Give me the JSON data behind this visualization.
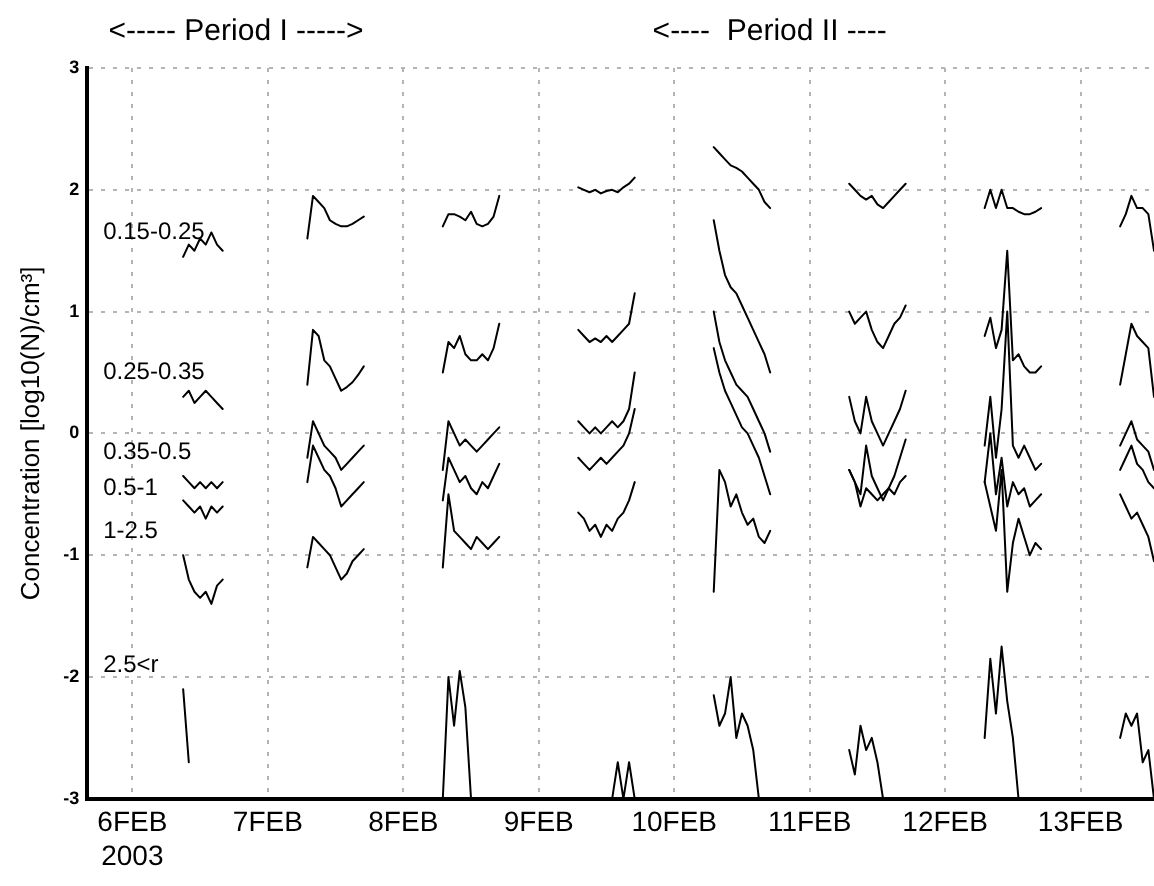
{
  "chart_data": {
    "type": "line",
    "ylabel": "Concentration [log10(N)/cm³]",
    "annotations": [
      "<----- Period I ----->",
      "<----  Period II ----"
    ],
    "xlim": [
      "2003-02-05T16:00",
      "2003-02-13T13:00"
    ],
    "xticks": [
      {
        "value": "2003-02-06",
        "label": "6FEB\n2003"
      },
      {
        "value": "2003-02-07",
        "label": "7FEB"
      },
      {
        "value": "2003-02-08",
        "label": "8FEB"
      },
      {
        "value": "2003-02-09",
        "label": "9FEB"
      },
      {
        "value": "2003-02-10",
        "label": "10FEB"
      },
      {
        "value": "2003-02-11",
        "label": "11FEB"
      },
      {
        "value": "2003-02-12",
        "label": "12FEB"
      },
      {
        "value": "2003-02-13",
        "label": "13FEB"
      }
    ],
    "ylim": [
      -3,
      3
    ],
    "yticks": [
      -3,
      -2,
      -1,
      0,
      1,
      2,
      3
    ],
    "grid": true,
    "legend": false,
    "marker": "none",
    "line_style": "solid",
    "x": [
      "2003-02-06T09:00",
      "2003-02-06T10:00",
      "2003-02-06T11:00",
      "2003-02-06T12:00",
      "2003-02-06T13:00",
      "2003-02-06T14:00",
      "2003-02-06T15:00",
      "2003-02-06T16:00",
      "2003-02-07T00:00",
      "2003-02-07T07:00",
      "2003-02-07T08:00",
      "2003-02-07T09:00",
      "2003-02-07T10:00",
      "2003-02-07T11:00",
      "2003-02-07T12:00",
      "2003-02-07T13:00",
      "2003-02-07T14:00",
      "2003-02-07T15:00",
      "2003-02-07T16:00",
      "2003-02-07T17:00",
      "2003-02-08T00:00",
      "2003-02-08T07:00",
      "2003-02-08T08:00",
      "2003-02-08T09:00",
      "2003-02-08T10:00",
      "2003-02-08T11:00",
      "2003-02-08T12:00",
      "2003-02-08T13:00",
      "2003-02-08T14:00",
      "2003-02-08T15:00",
      "2003-02-08T16:00",
      "2003-02-08T17:00",
      "2003-02-09T00:00",
      "2003-02-09T07:00",
      "2003-02-09T08:00",
      "2003-02-09T09:00",
      "2003-02-09T10:00",
      "2003-02-09T11:00",
      "2003-02-09T12:00",
      "2003-02-09T13:00",
      "2003-02-09T14:00",
      "2003-02-09T15:00",
      "2003-02-09T16:00",
      "2003-02-09T17:00",
      "2003-02-10T00:00",
      "2003-02-10T07:00",
      "2003-02-10T08:00",
      "2003-02-10T09:00",
      "2003-02-10T10:00",
      "2003-02-10T11:00",
      "2003-02-10T12:00",
      "2003-02-10T13:00",
      "2003-02-10T14:00",
      "2003-02-10T15:00",
      "2003-02-10T16:00",
      "2003-02-10T17:00",
      "2003-02-11T00:00",
      "2003-02-11T07:00",
      "2003-02-11T08:00",
      "2003-02-11T09:00",
      "2003-02-11T10:00",
      "2003-02-11T11:00",
      "2003-02-11T12:00",
      "2003-02-11T13:00",
      "2003-02-11T14:00",
      "2003-02-11T15:00",
      "2003-02-11T16:00",
      "2003-02-11T17:00",
      "2003-02-12T00:00",
      "2003-02-12T07:00",
      "2003-02-12T08:00",
      "2003-02-12T09:00",
      "2003-02-12T10:00",
      "2003-02-12T11:00",
      "2003-02-12T12:00",
      "2003-02-12T13:00",
      "2003-02-12T14:00",
      "2003-02-12T15:00",
      "2003-02-12T16:00",
      "2003-02-12T17:00",
      "2003-02-13T00:00",
      "2003-02-13T07:00",
      "2003-02-13T08:00",
      "2003-02-13T09:00",
      "2003-02-13T10:00",
      "2003-02-13T11:00",
      "2003-02-13T12:00",
      "2003-02-13T13:00"
    ],
    "series": [
      {
        "name": "0.15-0.25",
        "color": "#000000",
        "values": [
          1.45,
          1.55,
          1.5,
          1.6,
          1.55,
          1.65,
          1.55,
          1.5,
          null,
          1.6,
          1.95,
          1.9,
          1.85,
          1.75,
          1.72,
          1.7,
          1.7,
          1.72,
          1.75,
          1.78,
          null,
          1.7,
          1.8,
          1.8,
          1.78,
          1.75,
          1.82,
          1.72,
          1.7,
          1.72,
          1.78,
          1.95,
          null,
          2.02,
          2.0,
          1.98,
          2.0,
          1.97,
          1.99,
          2.0,
          1.98,
          2.02,
          2.05,
          2.1,
          null,
          2.35,
          2.3,
          2.25,
          2.2,
          2.18,
          2.15,
          2.1,
          2.05,
          2.0,
          1.9,
          1.85,
          null,
          2.05,
          2.0,
          1.95,
          1.92,
          1.95,
          1.88,
          1.85,
          1.9,
          1.95,
          2.0,
          2.05,
          null,
          1.85,
          2.0,
          1.85,
          2.0,
          1.85,
          1.85,
          1.82,
          1.8,
          1.8,
          1.82,
          1.85,
          null,
          1.7,
          1.8,
          1.95,
          1.85,
          1.85,
          1.8,
          1.5
        ]
      },
      {
        "name": "0.25-0.35",
        "color": "#000000",
        "values": [
          0.3,
          0.35,
          0.25,
          0.3,
          0.35,
          0.3,
          0.25,
          0.2,
          null,
          0.4,
          0.85,
          0.8,
          0.6,
          0.55,
          0.45,
          0.35,
          0.38,
          0.42,
          0.48,
          0.55,
          null,
          0.5,
          0.75,
          0.7,
          0.8,
          0.65,
          0.6,
          0.6,
          0.65,
          0.6,
          0.7,
          0.9,
          null,
          0.85,
          0.8,
          0.75,
          0.78,
          0.75,
          0.8,
          0.75,
          0.8,
          0.85,
          0.9,
          1.15,
          null,
          1.75,
          1.5,
          1.3,
          1.2,
          1.15,
          1.05,
          0.95,
          0.85,
          0.75,
          0.65,
          0.5,
          null,
          1.0,
          0.9,
          0.95,
          1.0,
          0.85,
          0.75,
          0.7,
          0.8,
          0.9,
          0.95,
          1.05,
          null,
          0.8,
          0.95,
          0.7,
          0.85,
          1.5,
          0.6,
          0.65,
          0.55,
          0.5,
          0.5,
          0.55,
          null,
          0.4,
          0.65,
          0.9,
          0.8,
          0.75,
          0.7,
          0.3
        ]
      },
      {
        "name": "0.35-0.5",
        "color": "#000000",
        "values": [
          -0.35,
          -0.4,
          -0.45,
          -0.4,
          -0.45,
          -0.4,
          -0.45,
          -0.4,
          null,
          -0.2,
          0.1,
          0.0,
          -0.1,
          -0.15,
          -0.2,
          -0.3,
          -0.25,
          -0.2,
          -0.15,
          -0.1,
          null,
          -0.3,
          0.1,
          0.0,
          -0.1,
          -0.05,
          -0.1,
          -0.15,
          -0.1,
          -0.05,
          0.0,
          0.05,
          null,
          0.1,
          0.05,
          0.0,
          0.05,
          0.0,
          0.05,
          0.1,
          0.05,
          0.1,
          0.2,
          0.5,
          null,
          1.0,
          0.75,
          0.6,
          0.5,
          0.4,
          0.35,
          0.3,
          0.2,
          0.1,
          0.0,
          -0.15,
          null,
          0.3,
          0.1,
          0.0,
          0.3,
          0.1,
          0.0,
          -0.1,
          0.0,
          0.1,
          0.2,
          0.35,
          null,
          -0.1,
          0.3,
          -0.2,
          0.2,
          1.0,
          -0.1,
          -0.2,
          -0.1,
          -0.2,
          -0.3,
          -0.25,
          null,
          -0.1,
          0.0,
          0.1,
          -0.05,
          -0.1,
          -0.15,
          -0.3
        ]
      },
      {
        "name": "0.5-1",
        "color": "#000000",
        "values": [
          -0.55,
          -0.6,
          -0.65,
          -0.6,
          -0.7,
          -0.6,
          -0.65,
          -0.6,
          null,
          -0.4,
          -0.1,
          -0.2,
          -0.3,
          -0.35,
          -0.45,
          -0.6,
          -0.55,
          -0.5,
          -0.45,
          -0.4,
          null,
          -0.55,
          -0.2,
          -0.3,
          -0.4,
          -0.35,
          -0.45,
          -0.5,
          -0.4,
          -0.45,
          -0.35,
          -0.25,
          null,
          -0.2,
          -0.25,
          -0.3,
          -0.25,
          -0.2,
          -0.25,
          -0.2,
          -0.15,
          -0.1,
          0.0,
          0.2,
          null,
          0.7,
          0.5,
          0.35,
          0.25,
          0.15,
          0.05,
          0.0,
          -0.1,
          -0.2,
          -0.35,
          -0.5,
          null,
          -0.3,
          -0.4,
          -0.5,
          -0.1,
          -0.35,
          -0.45,
          -0.55,
          -0.45,
          -0.35,
          -0.2,
          -0.05,
          null,
          -0.4,
          0.0,
          -0.5,
          -0.2,
          -0.6,
          -0.4,
          -0.5,
          -0.45,
          -0.6,
          -0.55,
          -0.5,
          null,
          -0.3,
          -0.2,
          -0.1,
          -0.25,
          -0.3,
          -0.4,
          -0.45
        ]
      },
      {
        "name": "1-2.5",
        "color": "#000000",
        "values": [
          -1.0,
          -1.2,
          -1.3,
          -1.35,
          -1.3,
          -1.4,
          -1.25,
          -1.2,
          null,
          -1.1,
          -0.85,
          -0.9,
          -0.95,
          -1.0,
          -1.1,
          -1.2,
          -1.15,
          -1.05,
          -1.0,
          -0.95,
          null,
          -1.1,
          -0.5,
          -0.8,
          -0.85,
          -0.9,
          -0.95,
          -0.85,
          -0.9,
          -0.95,
          -0.9,
          -0.85,
          null,
          -0.65,
          -0.7,
          -0.8,
          -0.75,
          -0.85,
          -0.75,
          -0.8,
          -0.7,
          -0.65,
          -0.55,
          -0.4,
          null,
          -1.3,
          -0.3,
          -0.4,
          -0.6,
          -0.5,
          -0.65,
          -0.75,
          -0.7,
          -0.85,
          -0.9,
          -0.8,
          null,
          -0.3,
          -0.4,
          -0.6,
          -0.45,
          -0.5,
          -0.55,
          -0.5,
          -0.45,
          -0.5,
          -0.4,
          -0.35,
          null,
          -0.4,
          -0.6,
          -0.8,
          -0.3,
          -1.3,
          -0.9,
          -0.7,
          -0.85,
          -1.0,
          -0.9,
          -0.95,
          null,
          -0.5,
          -0.6,
          -0.7,
          -0.65,
          -0.75,
          -0.85,
          -1.05
        ]
      },
      {
        "name": "2.5<r",
        "color": "#000000",
        "values": [
          -2.1,
          -2.7,
          null,
          null,
          null,
          null,
          null,
          null,
          null,
          null,
          null,
          null,
          null,
          null,
          null,
          null,
          null,
          null,
          null,
          null,
          null,
          -3,
          -2.0,
          -2.4,
          -1.95,
          -2.25,
          -3,
          -3,
          -3,
          -3,
          -3,
          -3,
          null,
          -3,
          -3,
          -3,
          -3,
          -3,
          -3,
          -3,
          -2.7,
          -3,
          -2.7,
          -3,
          null,
          -2.15,
          -2.4,
          -2.3,
          -2.0,
          -2.5,
          -2.3,
          -2.4,
          -2.6,
          -3,
          -3,
          -3,
          null,
          -2.6,
          -2.8,
          -2.4,
          -2.6,
          -2.5,
          -2.7,
          -3,
          -3,
          -3,
          -3,
          -3,
          null,
          -2.5,
          -1.85,
          -2.3,
          -1.75,
          -2.2,
          -2.5,
          -3,
          -3,
          -3,
          -3,
          -3,
          null,
          -2.5,
          -2.3,
          -2.4,
          -2.3,
          -2.7,
          -2.6,
          -3
        ]
      }
    ]
  }
}
